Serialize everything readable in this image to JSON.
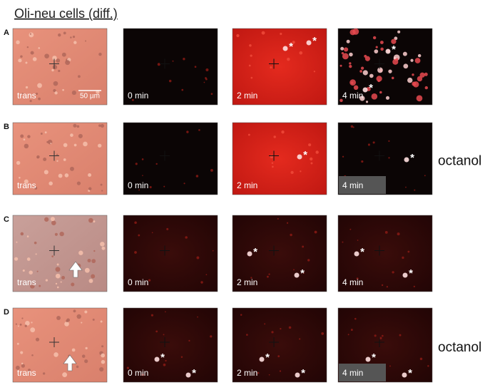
{
  "title": "Oli-neu cells (diff.)",
  "rows": [
    {
      "label": "A",
      "panels": [
        {
          "label": "trans",
          "scale_bar": "50 µm"
        },
        {
          "label": "0 min"
        },
        {
          "label": "2 min",
          "stars": [
            "*",
            "*"
          ]
        },
        {
          "label": "4 min",
          "stars": [
            "*",
            "*"
          ]
        }
      ]
    },
    {
      "label": "B",
      "side": "octanol",
      "panels": [
        {
          "label": "trans"
        },
        {
          "label": "0 min"
        },
        {
          "label": "2 min",
          "stars": [
            "*"
          ]
        },
        {
          "label": "4 min",
          "stars": [
            "*"
          ]
        }
      ]
    },
    {
      "label": "C",
      "panels": [
        {
          "label": "trans"
        },
        {
          "label": "0 min"
        },
        {
          "label": "2 min",
          "stars": [
            "*",
            "*"
          ]
        },
        {
          "label": "4 min",
          "stars": [
            "*",
            "*"
          ]
        }
      ]
    },
    {
      "label": "D",
      "side": "octanol",
      "panels": [
        {
          "label": "trans"
        },
        {
          "label": "0 min",
          "stars": [
            "*",
            "*"
          ]
        },
        {
          "label": "2 min",
          "stars": [
            "*",
            "*"
          ]
        },
        {
          "label": "4 min",
          "stars": [
            "*",
            "*"
          ]
        }
      ]
    }
  ]
}
